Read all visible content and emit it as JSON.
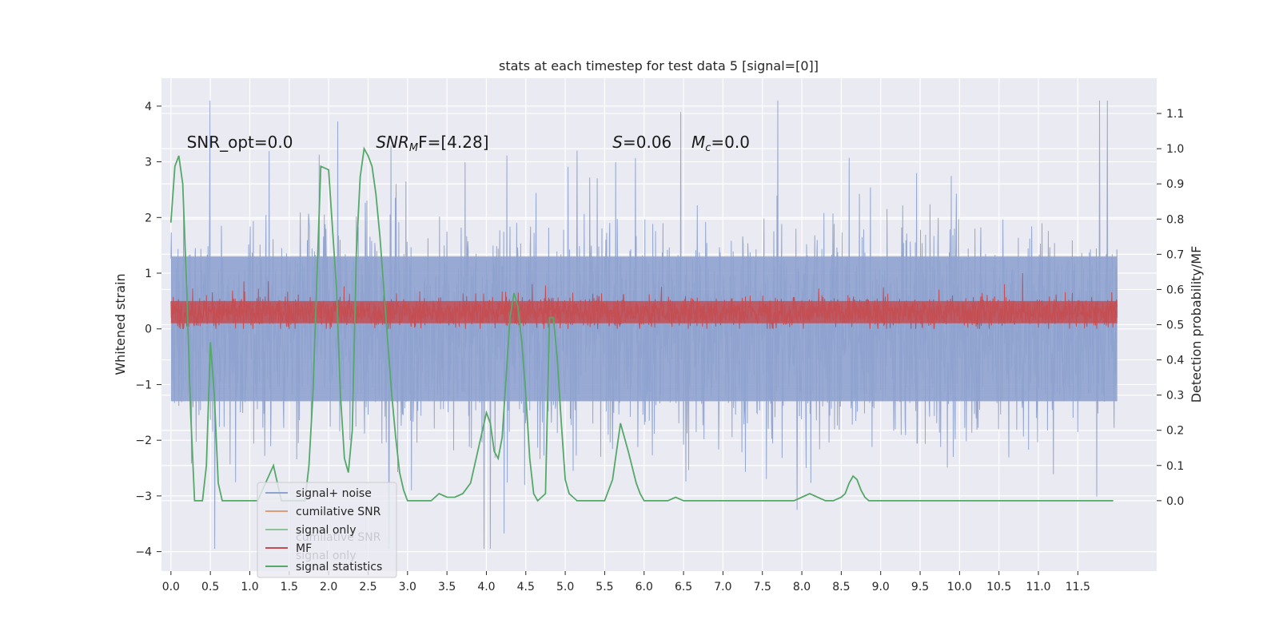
{
  "chart_data": {
    "type": "line",
    "title": "stats at each timestep for test data 5 [signal=[0]]",
    "xlabel": "",
    "ylabel": "Whitened strain",
    "ylabel_right": "Detection probability/MF",
    "xlim": [
      -0.12,
      12.5
    ],
    "ylim": [
      -4.35,
      4.5
    ],
    "ylim_right": [
      -0.2,
      1.2
    ],
    "x_ticks": [
      0.0,
      0.5,
      1.0,
      1.5,
      2.0,
      2.5,
      3.0,
      3.5,
      4.0,
      4.5,
      5.0,
      5.5,
      6.0,
      6.5,
      7.0,
      7.5,
      8.0,
      8.5,
      9.0,
      9.5,
      10.0,
      10.5,
      11.0,
      11.5
    ],
    "x_tick_labels": [
      "0.0",
      "0.5",
      "1.0",
      "1.5",
      "2.0",
      "2.5",
      "3.0",
      "3.5",
      "4.0",
      "4.5",
      "5.0",
      "5.5",
      "6.0",
      "6.5",
      "7.0",
      "7.5",
      "8.0",
      "8.5",
      "9.0",
      "9.5",
      "10.0",
      "10.5",
      "11.0",
      "11.5"
    ],
    "y_ticks": [
      -4,
      -3,
      -2,
      -1,
      0,
      1,
      2,
      3,
      4
    ],
    "y_tick_labels": [
      "−4",
      "−3",
      "−2",
      "−1",
      "0",
      "1",
      "2",
      "3",
      "4"
    ],
    "y_right_ticks": [
      0.0,
      0.1,
      0.2,
      0.3,
      0.4,
      0.5,
      0.6,
      0.7,
      0.8,
      0.9,
      1.0,
      1.1
    ],
    "y_right_tick_labels": [
      "0.0",
      "0.1",
      "0.2",
      "0.3",
      "0.4",
      "0.5",
      "0.6",
      "0.7",
      "0.8",
      "0.9",
      "1.0",
      "1.1"
    ],
    "grid": true,
    "legend_position": "lower-left",
    "legend": [
      {
        "label": "signal+ noise",
        "color": "#8fa3cf"
      },
      {
        "label": "cumilative SNR",
        "color": "#dd9d79"
      },
      {
        "label": "signal only",
        "color": "#8fc49a"
      },
      {
        "label": "MF",
        "color": "#c44e52"
      },
      {
        "label": "signal statistics",
        "color": "#55a868"
      }
    ],
    "legend_ghost": [
      {
        "label": "cumilative SNR",
        "color": "#c9c9d2"
      },
      {
        "label": "signal only",
        "color": "#c9c9d2"
      }
    ],
    "annotations": [
      {
        "text": "SNR_opt=0.0",
        "x": 0.2,
        "y": 3.35
      },
      {
        "text": "SNR_MF=[4.28]",
        "x": 2.6,
        "y": 3.35,
        "base": "SNR",
        "sub": "M",
        "tail": "F=[4.28]"
      },
      {
        "text": "S=0.06",
        "x": 5.6,
        "y": 3.35,
        "base": "S",
        "tail": "=0.06"
      },
      {
        "text": "M_c=0.0",
        "x": 6.6,
        "y": 3.35,
        "base": "M",
        "sub": "c",
        "tail": "=0.0"
      }
    ],
    "series": [
      {
        "name": "signal+ noise",
        "axis": "left",
        "color": "#8fa3cf",
        "note": "dense noisy trace, x 0.0-12.0, bulk roughly within ±2, spikes to about ±4",
        "x_range": [
          0.0,
          12.0
        ],
        "spike_max": 4.1,
        "spike_min": -3.95
      },
      {
        "name": "MF",
        "axis": "left",
        "color": "#c44e52",
        "note": "dense trace mostly between 0 and 0.7, occasional peaks near 1.0",
        "x_range": [
          0.0,
          12.0
        ],
        "max": 1.0,
        "min": 0.0
      },
      {
        "name": "signal statistics",
        "axis": "right",
        "color": "#55a868",
        "x": [
          0.0,
          0.05,
          0.1,
          0.15,
          0.2,
          0.25,
          0.3,
          0.35,
          0.4,
          0.45,
          0.5,
          0.55,
          0.6,
          0.65,
          0.7,
          0.8,
          0.9,
          1.0,
          1.1,
          1.2,
          1.3,
          1.4,
          1.45,
          1.5,
          1.55,
          1.6,
          1.65,
          1.7,
          1.75,
          1.8,
          1.9,
          2.0,
          2.1,
          2.15,
          2.2,
          2.25,
          2.3,
          2.35,
          2.4,
          2.45,
          2.5,
          2.55,
          2.6,
          2.65,
          2.7,
          2.75,
          2.8,
          2.85,
          2.9,
          2.95,
          3.0,
          3.1,
          3.2,
          3.3,
          3.4,
          3.5,
          3.6,
          3.7,
          3.8,
          3.9,
          4.0,
          4.05,
          4.1,
          4.15,
          4.2,
          4.25,
          4.3,
          4.35,
          4.4,
          4.45,
          4.5,
          4.55,
          4.6,
          4.65,
          4.7,
          4.75,
          4.8,
          4.85,
          4.9,
          4.95,
          5.0,
          5.05,
          5.1,
          5.15,
          5.2,
          5.25,
          5.3,
          5.35,
          5.4,
          5.5,
          5.6,
          5.7,
          5.8,
          5.9,
          5.95,
          6.0,
          6.05,
          6.1,
          6.15,
          6.2,
          6.3,
          6.4,
          6.5,
          6.6,
          6.7,
          6.8,
          6.9,
          7.0,
          7.1,
          7.2,
          7.3,
          7.4,
          7.5,
          7.6,
          7.7,
          7.8,
          7.9,
          8.0,
          8.1,
          8.2,
          8.3,
          8.4,
          8.5,
          8.55,
          8.6,
          8.65,
          8.7,
          8.75,
          8.8,
          8.85,
          8.9,
          8.95,
          9.0,
          9.5,
          10.0,
          10.5,
          11.0,
          11.5,
          11.95
        ],
        "values": [
          0.79,
          0.95,
          0.98,
          0.9,
          0.6,
          0.25,
          0.0,
          0.0,
          0.0,
          0.1,
          0.45,
          0.3,
          0.05,
          0.0,
          0.0,
          0.0,
          0.0,
          0.0,
          0.0,
          0.05,
          0.1,
          0.0,
          0.0,
          0.0,
          0.0,
          0.0,
          0.0,
          0.0,
          0.1,
          0.3,
          0.95,
          0.94,
          0.6,
          0.3,
          0.12,
          0.08,
          0.2,
          0.7,
          0.92,
          1.0,
          0.98,
          0.95,
          0.87,
          0.75,
          0.6,
          0.45,
          0.3,
          0.18,
          0.08,
          0.03,
          0.0,
          0.0,
          0.0,
          0.0,
          0.02,
          0.01,
          0.01,
          0.02,
          0.05,
          0.15,
          0.25,
          0.22,
          0.14,
          0.12,
          0.18,
          0.35,
          0.52,
          0.59,
          0.55,
          0.45,
          0.3,
          0.12,
          0.02,
          0.0,
          0.01,
          0.02,
          0.52,
          0.52,
          0.4,
          0.22,
          0.06,
          0.02,
          0.01,
          0.0,
          0.0,
          0.0,
          0.0,
          0.0,
          0.0,
          0.0,
          0.06,
          0.22,
          0.14,
          0.05,
          0.02,
          0.0,
          0.0,
          0.0,
          0.0,
          0.0,
          0.0,
          0.01,
          0.0,
          0.0,
          0.0,
          0.0,
          0.0,
          0.0,
          0.0,
          0.0,
          0.0,
          0.0,
          0.0,
          0.0,
          0.0,
          0.0,
          0.0,
          0.01,
          0.02,
          0.01,
          0.0,
          0.0,
          0.01,
          0.02,
          0.05,
          0.07,
          0.06,
          0.03,
          0.01,
          0.0,
          0.0,
          0.0,
          0.0,
          0.0,
          0.0,
          0.0,
          0.0,
          0.0,
          0.0
        ]
      }
    ]
  }
}
